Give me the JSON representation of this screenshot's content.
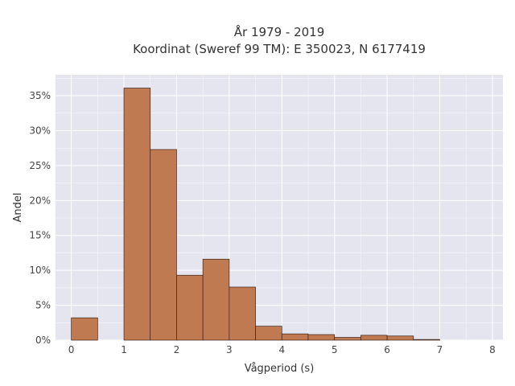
{
  "chart_data": {
    "type": "bar",
    "title_lines": [
      "År 1979 - 2019",
      "Koordinat (Sweref 99 TM): E 350023, N 6177419"
    ],
    "xlabel": "Vågperiod (s)",
    "ylabel": "Andel",
    "xlim": [
      -0.3,
      8.2
    ],
    "ylim": [
      0,
      0.38
    ],
    "x_ticks": [
      0,
      1,
      2,
      3,
      4,
      5,
      6,
      7,
      8
    ],
    "x_tick_labels": [
      "0",
      "1",
      "2",
      "3",
      "4",
      "5",
      "6",
      "7",
      "8"
    ],
    "y_ticks": [
      0,
      0.05,
      0.1,
      0.15,
      0.2,
      0.25,
      0.3,
      0.35
    ],
    "y_tick_labels": [
      "0%",
      "5%",
      "10%",
      "15%",
      "20%",
      "25%",
      "30%",
      "35%"
    ],
    "grid": true,
    "bins": [
      {
        "x0": 0.0,
        "x1": 0.5,
        "value": 0.032
      },
      {
        "x0": 1.0,
        "x1": 1.5,
        "value": 0.361
      },
      {
        "x0": 1.5,
        "x1": 2.0,
        "value": 0.273
      },
      {
        "x0": 2.0,
        "x1": 2.5,
        "value": 0.093
      },
      {
        "x0": 2.5,
        "x1": 3.0,
        "value": 0.116
      },
      {
        "x0": 3.0,
        "x1": 3.5,
        "value": 0.076
      },
      {
        "x0": 3.5,
        "x1": 4.0,
        "value": 0.02
      },
      {
        "x0": 4.0,
        "x1": 4.5,
        "value": 0.009
      },
      {
        "x0": 4.5,
        "x1": 5.0,
        "value": 0.008
      },
      {
        "x0": 5.0,
        "x1": 5.5,
        "value": 0.004
      },
      {
        "x0": 5.5,
        "x1": 6.0,
        "value": 0.007
      },
      {
        "x0": 6.0,
        "x1": 6.5,
        "value": 0.006
      },
      {
        "x0": 6.5,
        "x1": 7.0,
        "value": 0.001
      }
    ],
    "colors": {
      "bar_fill": "#c07a52",
      "bar_edge": "#3a2418",
      "plot_bg": "#e5e5ef",
      "grid": "#ffffff"
    }
  }
}
